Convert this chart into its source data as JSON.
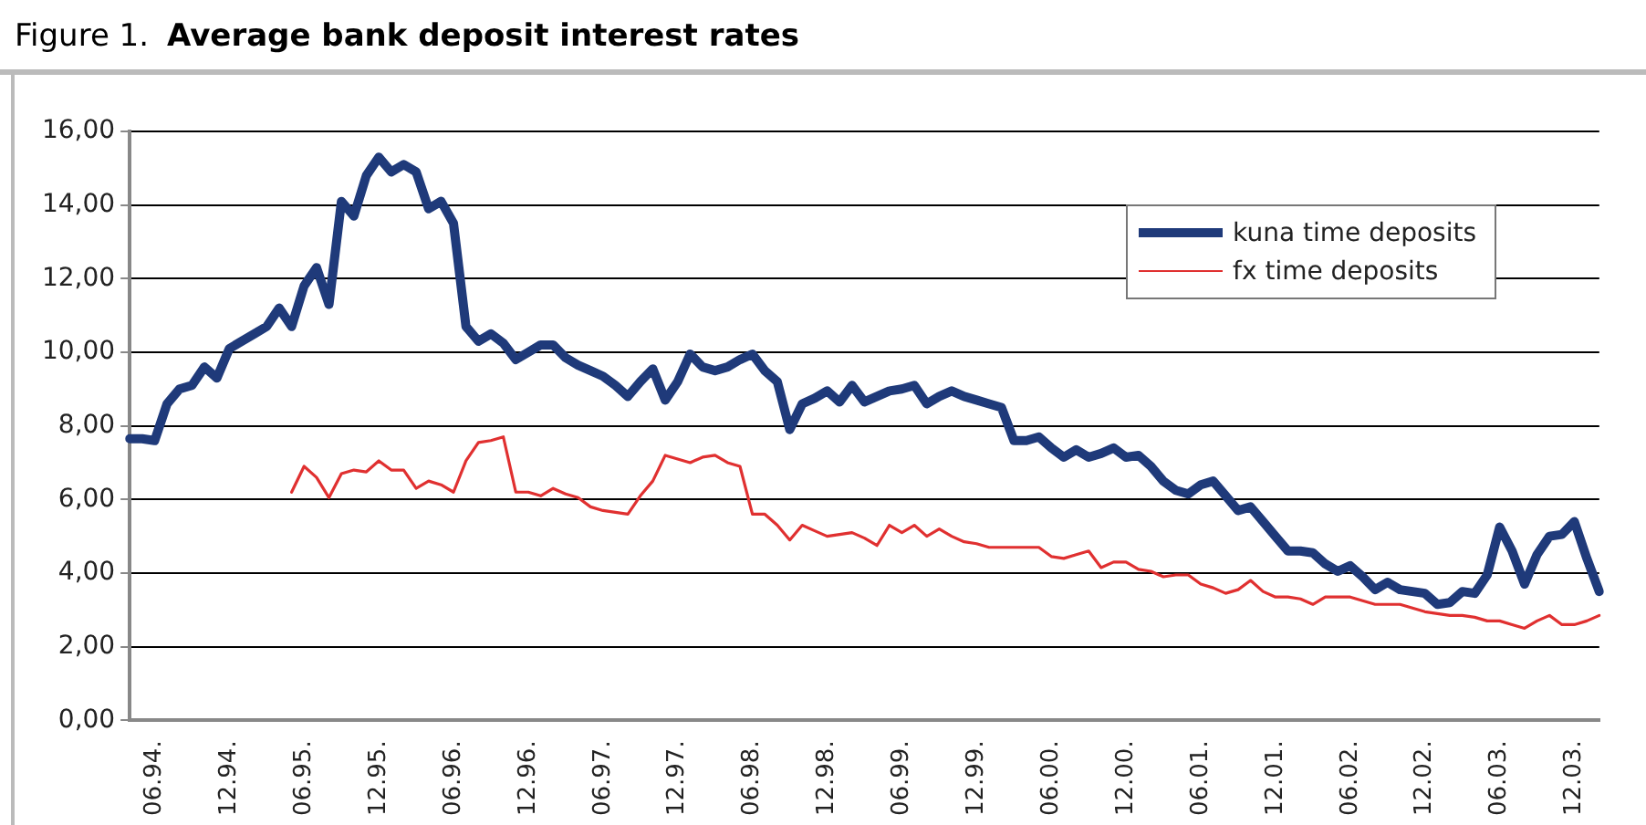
{
  "chart_data": {
    "type": "line",
    "title": "Average bank deposit interest rates",
    "annotations": [
      "Figure 1."
    ],
    "categories": [
      null,
      null,
      "06.94.",
      null,
      null,
      null,
      null,
      null,
      "12.94.",
      null,
      null,
      null,
      null,
      null,
      "06.95.",
      null,
      null,
      null,
      null,
      null,
      "12.95.",
      null,
      null,
      null,
      null,
      null,
      "06.96.",
      null,
      null,
      null,
      null,
      null,
      "12.96.",
      null,
      null,
      null,
      null,
      null,
      "06.97.",
      null,
      null,
      null,
      null,
      null,
      "12.97.",
      null,
      null,
      null,
      null,
      null,
      "06.98.",
      null,
      null,
      null,
      null,
      null,
      "12.98.",
      null,
      null,
      null,
      null,
      null,
      "06.99.",
      null,
      null,
      null,
      null,
      null,
      "12.99.",
      null,
      null,
      null,
      null,
      null,
      "06.00.",
      null,
      null,
      null,
      null,
      null,
      "12.00.",
      null,
      null,
      null,
      null,
      null,
      "06.01.",
      null,
      null,
      null,
      null,
      null,
      "12.01.",
      null,
      null,
      null,
      null,
      null,
      "06.02.",
      null,
      null,
      null,
      null,
      null,
      "12.02.",
      null,
      null,
      null,
      null,
      null,
      "06.03.",
      null,
      null,
      null,
      null,
      null,
      "12.03.",
      null,
      null
    ],
    "series": [
      {
        "name": "kuna time deposits",
        "color": "#1f3a7a",
        "values": [
          7.65,
          7.65,
          7.6,
          8.6,
          9.0,
          9.1,
          9.6,
          9.3,
          10.1,
          10.3,
          10.5,
          10.7,
          11.2,
          10.7,
          11.8,
          12.3,
          11.3,
          14.1,
          13.7,
          14.8,
          15.3,
          14.9,
          15.1,
          14.9,
          13.9,
          14.1,
          13.5,
          10.7,
          10.3,
          10.5,
          10.25,
          9.8,
          10.0,
          10.2,
          10.2,
          9.85,
          9.65,
          9.5,
          9.35,
          9.1,
          8.8,
          9.2,
          9.55,
          8.7,
          9.2,
          9.95,
          9.6,
          9.5,
          9.6,
          9.8,
          9.95,
          9.5,
          9.2,
          7.9,
          8.6,
          8.75,
          8.95,
          8.65,
          9.1,
          8.65,
          8.8,
          8.95,
          9.0,
          9.1,
          8.6,
          8.8,
          8.95,
          8.8,
          8.7,
          8.6,
          8.5,
          7.6,
          7.6,
          7.7,
          7.4,
          7.15,
          7.35,
          7.15,
          7.25,
          7.4,
          7.15,
          7.2,
          6.9,
          6.5,
          6.25,
          6.15,
          6.4,
          6.5,
          6.1,
          5.7,
          5.8,
          5.4,
          5.0,
          4.6,
          4.6,
          4.55,
          4.25,
          4.05,
          4.2,
          3.9,
          3.55,
          3.75,
          3.55,
          3.5,
          3.45,
          3.15,
          3.2,
          3.5,
          3.45,
          3.95,
          5.25,
          4.6,
          3.7,
          4.5,
          5.0,
          5.05,
          5.4,
          4.4,
          3.5
        ]
      },
      {
        "name": "fx time deposits",
        "color": "#e03030",
        "values": [
          null,
          null,
          null,
          null,
          null,
          null,
          null,
          null,
          null,
          null,
          null,
          null,
          null,
          6.2,
          6.9,
          6.6,
          6.05,
          6.7,
          6.8,
          6.75,
          7.05,
          6.8,
          6.8,
          6.3,
          6.5,
          6.4,
          6.2,
          7.05,
          7.55,
          7.6,
          7.7,
          6.2,
          6.2,
          6.1,
          6.3,
          6.15,
          6.05,
          5.8,
          5.7,
          5.65,
          5.6,
          6.1,
          6.5,
          7.2,
          7.1,
          7.0,
          7.15,
          7.2,
          7.0,
          6.9,
          5.6,
          5.6,
          5.3,
          4.9,
          5.3,
          5.15,
          5.0,
          5.05,
          5.1,
          4.95,
          4.75,
          5.3,
          5.1,
          5.3,
          5.0,
          5.2,
          5.0,
          4.85,
          4.8,
          4.7,
          4.7,
          4.7,
          4.7,
          4.7,
          4.45,
          4.4,
          4.5,
          4.6,
          4.15,
          4.3,
          4.3,
          4.1,
          4.05,
          3.9,
          3.95,
          3.95,
          3.7,
          3.6,
          3.45,
          3.55,
          3.8,
          3.5,
          3.35,
          3.35,
          3.3,
          3.15,
          3.35,
          3.35,
          3.35,
          3.25,
          3.15,
          3.15,
          3.15,
          3.05,
          2.95,
          2.9,
          2.85,
          2.85,
          2.8,
          2.7,
          2.7,
          2.6,
          2.5,
          2.7,
          2.85,
          2.6,
          2.6,
          2.7,
          2.85
        ]
      }
    ],
    "ylim": [
      0,
      16
    ],
    "yticks": [
      {
        "value": 0,
        "label": "0,00"
      },
      {
        "value": 2,
        "label": "2,00"
      },
      {
        "value": 4,
        "label": "4,00"
      },
      {
        "value": 6,
        "label": "6,00"
      },
      {
        "value": 8,
        "label": "8,00"
      },
      {
        "value": 10,
        "label": "10,00"
      },
      {
        "value": 12,
        "label": "12,00"
      },
      {
        "value": 14,
        "label": "14,00"
      },
      {
        "value": 16,
        "label": "16,00"
      }
    ],
    "grid": "y",
    "legend": "top right",
    "marker": "none",
    "line_style": "solid"
  }
}
